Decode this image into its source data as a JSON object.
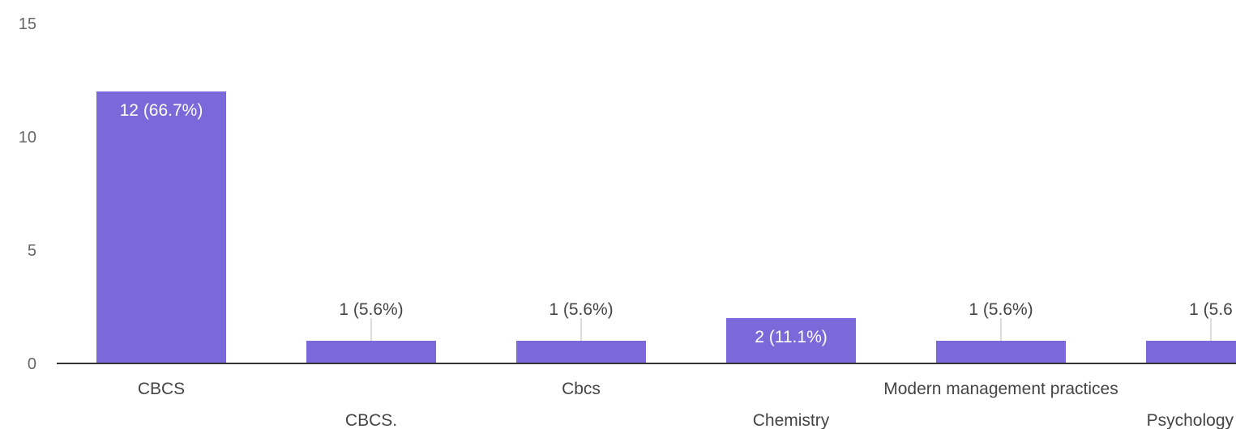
{
  "chart_data": {
    "type": "bar",
    "categories": [
      "CBCS",
      "CBCS.",
      "Cbcs",
      "Chemistry",
      "Modern management practices",
      "Psychology"
    ],
    "values": [
      12,
      1,
      1,
      2,
      1,
      1
    ],
    "data_labels": [
      "12 (66.7%)",
      "1 (5.6%)",
      "1 (5.6%)",
      "2 (11.1%)",
      "1 (5.6%)",
      "1 (5.6"
    ],
    "y_ticks": [
      "0",
      "5",
      "10",
      "15"
    ],
    "ylim": [
      0,
      15
    ],
    "grid": false,
    "colors": {
      "bar": "#7b68d9",
      "axis": "#333333",
      "label_inside": "#ffffff",
      "label_outside": "#444444",
      "leader": "#bbbbbb"
    }
  }
}
